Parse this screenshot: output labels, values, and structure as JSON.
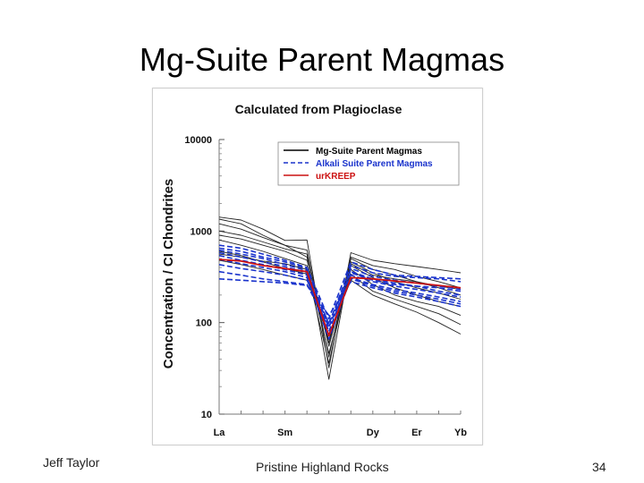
{
  "slide": {
    "title": "Mg-Suite Parent Magmas",
    "footer_left": "Jeff Taylor",
    "footer_center": "Pristine Highland Rocks",
    "page_number": "34"
  },
  "chart_data": {
    "type": "line",
    "title": "Calculated from Plagioclase",
    "xlabel": "",
    "ylabel": "Concentration / CI Chondrites",
    "yscale": "log",
    "ylim": [
      10,
      10000
    ],
    "yticks": [
      "10",
      "100",
      "1000",
      "10000"
    ],
    "x_positions": [
      1,
      2,
      3,
      4,
      5,
      6,
      7,
      8,
      9,
      10,
      11,
      12
    ],
    "xticks": [
      {
        "label": "La",
        "x": 1
      },
      {
        "label": "Sm",
        "x": 4
      },
      {
        "label": "Dy",
        "x": 8
      },
      {
        "label": "Er",
        "x": 10
      },
      {
        "label": "Yb",
        "x": 12
      }
    ],
    "grid": false,
    "legend": {
      "position": "top-right",
      "entries": [
        {
          "label": "Mg-Suite Parent Magmas",
          "color": "#000000",
          "style": "solid"
        },
        {
          "label": "Alkali Suite Parent Magmas",
          "color": "#1a33cc",
          "style": "dashed"
        },
        {
          "label": "urKREEP",
          "color": "#cc1111",
          "style": "solid"
        }
      ]
    },
    "series": [
      {
        "name": "Mg-Suite Parent Magmas",
        "group": "mg",
        "values": [
          1420,
          1320,
          1050,
          790,
          800,
          32,
          580,
          480,
          440,
          410,
          380,
          350
        ]
      },
      {
        "name": "Mg-Suite Parent Magmas",
        "group": "mg",
        "values": [
          1350,
          1200,
          900,
          700,
          620,
          42,
          520,
          420,
          380,
          320,
          280,
          240
        ]
      },
      {
        "name": "Mg-Suite Parent Magmas",
        "group": "mg",
        "values": [
          1200,
          1050,
          850,
          700,
          520,
          24,
          500,
          380,
          330,
          280,
          240,
          200
        ]
      },
      {
        "name": "Mg-Suite Parent Magmas",
        "group": "mg",
        "values": [
          1000,
          900,
          760,
          640,
          560,
          55,
          460,
          350,
          280,
          240,
          210,
          180
        ]
      },
      {
        "name": "Mg-Suite Parent Magmas",
        "group": "mg",
        "values": [
          900,
          820,
          700,
          600,
          480,
          60,
          420,
          310,
          240,
          200,
          170,
          150
        ]
      },
      {
        "name": "Mg-Suite Parent Magmas",
        "group": "mg",
        "values": [
          800,
          700,
          600,
          500,
          420,
          46,
          380,
          260,
          200,
          170,
          150,
          120
        ]
      },
      {
        "name": "Mg-Suite Parent Magmas",
        "group": "mg",
        "values": [
          600,
          540,
          460,
          390,
          340,
          65,
          340,
          220,
          180,
          150,
          125,
          95
        ]
      },
      {
        "name": "Mg-Suite Parent Magmas",
        "group": "mg",
        "values": [
          480,
          430,
          380,
          330,
          290,
          75,
          290,
          200,
          160,
          130,
          100,
          75
        ]
      },
      {
        "name": "Mg-Suite Parent Magmas",
        "group": "mg",
        "values": [
          560,
          520,
          470,
          440,
          380,
          36,
          440,
          330,
          300,
          280,
          250,
          230
        ]
      },
      {
        "name": "Alkali Suite Parent Magmas",
        "group": "alkali",
        "values": [
          700,
          650,
          560,
          480,
          400,
          110,
          460,
          380,
          330,
          320,
          310,
          300
        ]
      },
      {
        "name": "Alkali Suite Parent Magmas",
        "group": "alkali",
        "values": [
          650,
          600,
          520,
          460,
          390,
          95,
          420,
          350,
          320,
          310,
          300,
          280
        ]
      },
      {
        "name": "Alkali Suite Parent Magmas",
        "group": "alkali",
        "values": [
          620,
          560,
          500,
          430,
          370,
          88,
          390,
          320,
          290,
          270,
          250,
          230
        ]
      },
      {
        "name": "Alkali Suite Parent Magmas",
        "group": "alkali",
        "values": [
          580,
          520,
          460,
          410,
          350,
          80,
          360,
          300,
          270,
          250,
          220,
          200
        ]
      },
      {
        "name": "Alkali Suite Parent Magmas",
        "group": "alkali",
        "values": [
          540,
          480,
          430,
          380,
          330,
          72,
          330,
          280,
          250,
          230,
          210,
          190
        ]
      },
      {
        "name": "Alkali Suite Parent Magmas",
        "group": "alkali",
        "values": [
          490,
          440,
          400,
          360,
          310,
          66,
          310,
          260,
          230,
          210,
          190,
          170
        ]
      },
      {
        "name": "Alkali Suite Parent Magmas",
        "group": "alkali",
        "values": [
          430,
          390,
          360,
          330,
          290,
          100,
          350,
          290,
          260,
          250,
          240,
          220
        ]
      },
      {
        "name": "Alkali Suite Parent Magmas",
        "group": "alkali",
        "values": [
          360,
          330,
          300,
          280,
          260,
          90,
          300,
          250,
          220,
          200,
          180,
          160
        ]
      },
      {
        "name": "Alkali Suite Parent Magmas",
        "group": "alkali",
        "values": [
          300,
          290,
          280,
          270,
          255,
          120,
          280,
          240,
          210,
          190,
          170,
          150
        ]
      },
      {
        "name": "urKREEP",
        "group": "urkreep",
        "values": [
          490,
          470,
          420,
          390,
          360,
          72,
          310,
          300,
          285,
          270,
          255,
          240
        ]
      }
    ]
  }
}
